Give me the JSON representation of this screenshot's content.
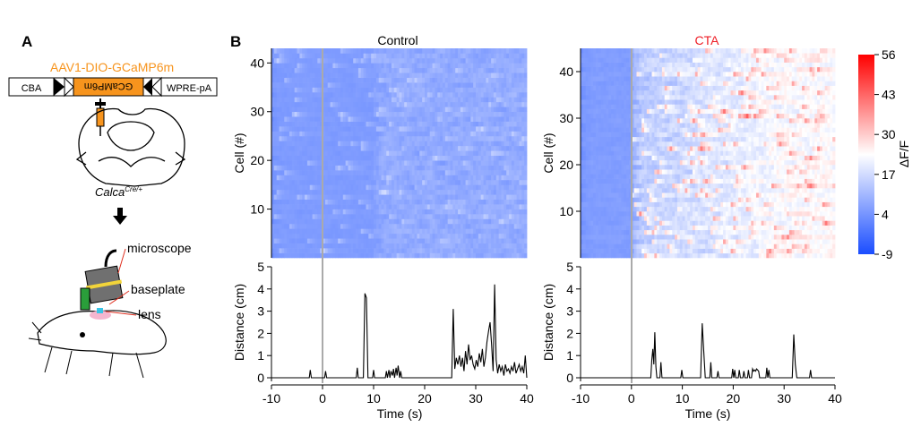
{
  "panel_a": {
    "label": "A",
    "virus": "AAV1-DIO-GCaMP6m",
    "construct": [
      "CBA",
      "GCaMP6m",
      "WPRE-pA"
    ],
    "mouse_line": "Calca",
    "mouse_line_sup": "Cre/+",
    "labels": [
      "microscope",
      "baseplate",
      "lens"
    ]
  },
  "panel_b": {
    "label": "B"
  },
  "colorbar": {
    "label": "ΔF/F",
    "ticks": [
      "56",
      "43",
      "30",
      "17",
      "4",
      "-9"
    ],
    "colors": {
      "low": "#1a4dff",
      "mid": "#ffffff",
      "high": "#ff0000"
    }
  },
  "colors": {
    "accent_orange": "#f7941d",
    "cta_red": "#ee1c25",
    "trace": "#000000",
    "stim_line": "#aaaaaa"
  },
  "chart_data": [
    {
      "type": "heatmap",
      "title": "Control",
      "ylabel": "Cell (#)",
      "yticks": [
        "10",
        "20",
        "30",
        "40"
      ],
      "ylim": [
        0,
        43
      ],
      "xlim": [
        -10,
        40
      ],
      "cells": 43,
      "value_range": [
        -9,
        56
      ],
      "activity_level": "low"
    },
    {
      "type": "heatmap",
      "title": "CTA",
      "ylabel": "Cell (#)",
      "yticks": [
        "10",
        "20",
        "30",
        "40"
      ],
      "ylim": [
        0,
        45
      ],
      "xlim": [
        -10,
        40
      ],
      "cells": 45,
      "value_range": [
        -9,
        56
      ],
      "activity_level": "high_after_stimulus"
    },
    {
      "type": "line",
      "xlabel": "Time (s)",
      "ylabel": "Distance (cm)",
      "xlim": [
        -10,
        40
      ],
      "ylim": [
        0,
        5
      ],
      "xticks": [
        "-10",
        "0",
        "10",
        "20",
        "30",
        "40"
      ],
      "yticks": [
        "0",
        "1",
        "2",
        "3",
        "4",
        "5"
      ],
      "x": [
        -10,
        -2.6,
        -2.4,
        -2.2,
        0.4,
        0.6,
        0.8,
        6.6,
        6.8,
        7.0,
        8.0,
        8.3,
        8.6,
        8.9,
        9.8,
        10.0,
        10.2,
        12.3,
        12.5,
        12.7,
        13.0,
        13.2,
        13.4,
        13.7,
        13.9,
        14.1,
        14.4,
        14.6,
        14.8,
        15.1,
        15.3,
        15.5,
        25.3,
        25.6,
        25.9,
        26.2,
        26.5,
        26.8,
        27.1,
        27.4,
        27.7,
        28.0,
        28.3,
        28.6,
        28.9,
        29.2,
        29.5,
        29.8,
        30.1,
        30.4,
        30.7,
        31.0,
        31.3,
        31.6,
        31.9,
        32.2,
        32.5,
        32.8,
        33.1,
        33.4,
        33.7,
        34.0,
        34.3,
        34.6,
        34.9,
        35.2,
        35.5,
        35.8,
        36.1,
        36.4,
        36.7,
        37.0,
        37.3,
        37.6,
        37.9,
        38.2,
        38.5,
        38.8,
        39.1,
        39.4,
        39.7,
        40
      ],
      "y": [
        0,
        0,
        0.35,
        0,
        0,
        0.3,
        0,
        0,
        0.45,
        0,
        0,
        3.8,
        3.6,
        0,
        0,
        0.35,
        0,
        0,
        0.3,
        0,
        0.35,
        0,
        0.3,
        0.1,
        0.4,
        0,
        0.45,
        0.1,
        0.55,
        0,
        0.3,
        0,
        0,
        3.1,
        0.4,
        0.9,
        0.6,
        1.0,
        0.5,
        0.9,
        0.3,
        1.2,
        0.6,
        1.5,
        0.8,
        1.0,
        0.6,
        0.4,
        0.8,
        0.5,
        1.1,
        0.7,
        1.3,
        0.5,
        0.9,
        1.6,
        2.1,
        2.5,
        1.5,
        0.3,
        4.2,
        0.8,
        0.2,
        0.6,
        0.3,
        0.5,
        0.1,
        0.6,
        0.3,
        0.4,
        0.2,
        0.5,
        0.3,
        0.7,
        0.2,
        0.4,
        0.6,
        0.3,
        0.5,
        0.2,
        1.0,
        0
      ]
    },
    {
      "type": "line",
      "xlabel": "Time (s)",
      "ylabel": "Distance (cm)",
      "xlim": [
        -10,
        40
      ],
      "ylim": [
        0,
        5
      ],
      "xticks": [
        "-10",
        "0",
        "10",
        "20",
        "30",
        "40"
      ],
      "yticks": [
        "0",
        "1",
        "2",
        "3",
        "4",
        "5"
      ],
      "x": [
        -10,
        3.8,
        4.0,
        4.2,
        4.4,
        4.6,
        4.8,
        5.0,
        5.6,
        5.8,
        6.0,
        9.7,
        9.9,
        10.1,
        13.6,
        13.9,
        14.2,
        14.5,
        15.4,
        15.6,
        15.8,
        16.8,
        17.0,
        17.2,
        19.7,
        19.9,
        20.1,
        20.3,
        20.5,
        21.0,
        21.2,
        21.4,
        21.9,
        22.1,
        22.3,
        22.8,
        23.0,
        23.2,
        23.6,
        23.8,
        24.0,
        24.2,
        24.4,
        24.6,
        25.0,
        25.2,
        26.4,
        26.6,
        26.8,
        27.0,
        27.2,
        31.6,
        31.9,
        32.2,
        32.5,
        35.0,
        35.2,
        35.4,
        40
      ],
      "y": [
        0,
        0,
        0.8,
        1.3,
        0.6,
        2.05,
        0.5,
        0,
        0,
        0.7,
        0,
        0,
        0.35,
        0,
        0,
        2.45,
        1.2,
        0,
        0,
        0.7,
        0,
        0,
        0.3,
        0,
        0,
        0.4,
        0,
        0.35,
        0,
        0,
        0.35,
        0,
        0,
        0.3,
        0,
        0,
        0.35,
        0,
        0,
        0.4,
        0.3,
        0.35,
        0.3,
        0.4,
        0.3,
        0,
        0,
        0.45,
        0,
        0.35,
        0,
        0,
        1.95,
        0.6,
        0,
        0,
        0.35,
        0,
        0
      ]
    }
  ]
}
